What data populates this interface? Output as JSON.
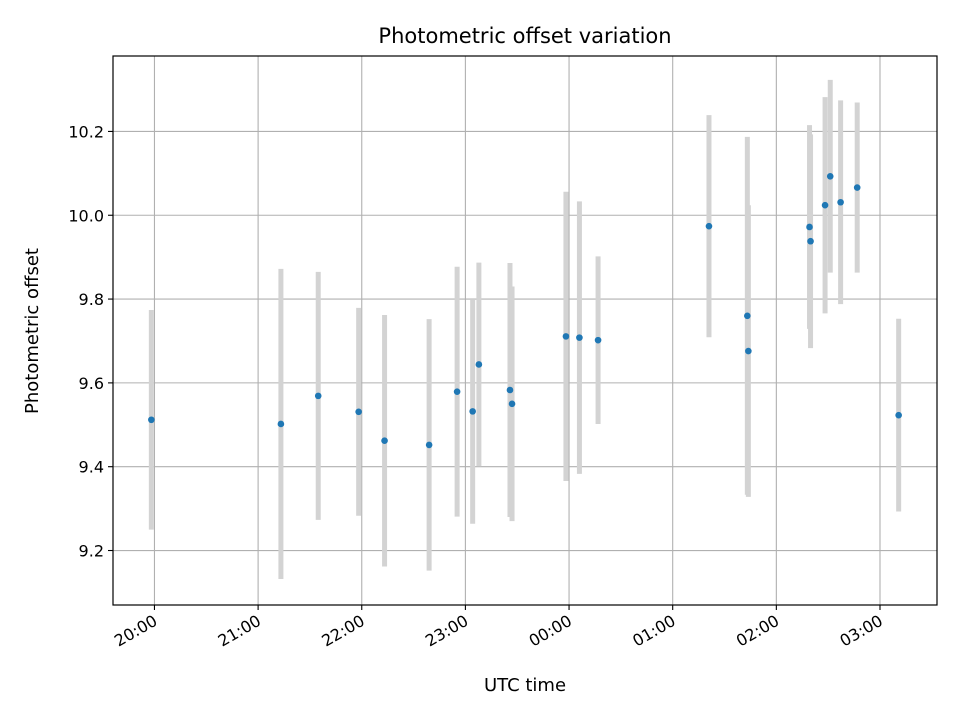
{
  "chart_data": {
    "type": "scatter",
    "title": "Photometric offset variation",
    "xlabel": "UTC time",
    "ylabel": "Photometric offset",
    "x_unit": "hours",
    "xlim": [
      19.6,
      27.55
    ],
    "ylim": [
      9.07,
      10.38
    ],
    "grid": true,
    "x_ticks": [
      {
        "value": 20,
        "label": "20:00"
      },
      {
        "value": 21,
        "label": "21:00"
      },
      {
        "value": 22,
        "label": "22:00"
      },
      {
        "value": 23,
        "label": "23:00"
      },
      {
        "value": 24,
        "label": "00:00"
      },
      {
        "value": 25,
        "label": "01:00"
      },
      {
        "value": 26,
        "label": "02:00"
      },
      {
        "value": 27,
        "label": "03:00"
      }
    ],
    "y_ticks": [
      {
        "value": 9.2,
        "label": "9.2"
      },
      {
        "value": 9.4,
        "label": "9.4"
      },
      {
        "value": 9.6,
        "label": "9.6"
      },
      {
        "value": 9.8,
        "label": "9.8"
      },
      {
        "value": 10.0,
        "label": "10.0"
      },
      {
        "value": 10.2,
        "label": "10.2"
      }
    ],
    "point_color": "#1f77b4",
    "errorbar_color": "#d3d3d3",
    "points": [
      {
        "x": 19.97,
        "y": 9.512,
        "yerr": 0.262
      },
      {
        "x": 21.22,
        "y": 9.502,
        "yerr": 0.37
      },
      {
        "x": 21.58,
        "y": 9.569,
        "yerr": 0.296
      },
      {
        "x": 21.97,
        "y": 9.531,
        "yerr": 0.248
      },
      {
        "x": 22.22,
        "y": 9.462,
        "yerr": 0.3
      },
      {
        "x": 22.65,
        "y": 9.452,
        "yerr": 0.3
      },
      {
        "x": 22.92,
        "y": 9.579,
        "yerr": 0.298
      },
      {
        "x": 23.07,
        "y": 9.532,
        "yerr": 0.268
      },
      {
        "x": 23.13,
        "y": 9.644,
        "yerr": 0.243
      },
      {
        "x": 23.43,
        "y": 9.583,
        "yerr": 0.303
      },
      {
        "x": 23.45,
        "y": 9.55,
        "yerr": 0.28
      },
      {
        "x": 23.97,
        "y": 9.711,
        "yerr": 0.345
      },
      {
        "x": 24.1,
        "y": 9.708,
        "yerr": 0.325
      },
      {
        "x": 24.28,
        "y": 9.702,
        "yerr": 0.2
      },
      {
        "x": 25.35,
        "y": 9.974,
        "yerr": 0.265
      },
      {
        "x": 25.72,
        "y": 9.76,
        "yerr": 0.427
      },
      {
        "x": 25.73,
        "y": 9.676,
        "yerr": 0.348
      },
      {
        "x": 26.32,
        "y": 9.972,
        "yerr": 0.243
      },
      {
        "x": 26.33,
        "y": 9.938,
        "yerr": 0.255
      },
      {
        "x": 26.47,
        "y": 10.024,
        "yerr": 0.258
      },
      {
        "x": 26.52,
        "y": 10.093,
        "yerr": 0.23
      },
      {
        "x": 26.62,
        "y": 10.031,
        "yerr": 0.243
      },
      {
        "x": 26.78,
        "y": 10.066,
        "yerr": 0.203
      },
      {
        "x": 27.18,
        "y": 9.523,
        "yerr": 0.23
      }
    ]
  }
}
